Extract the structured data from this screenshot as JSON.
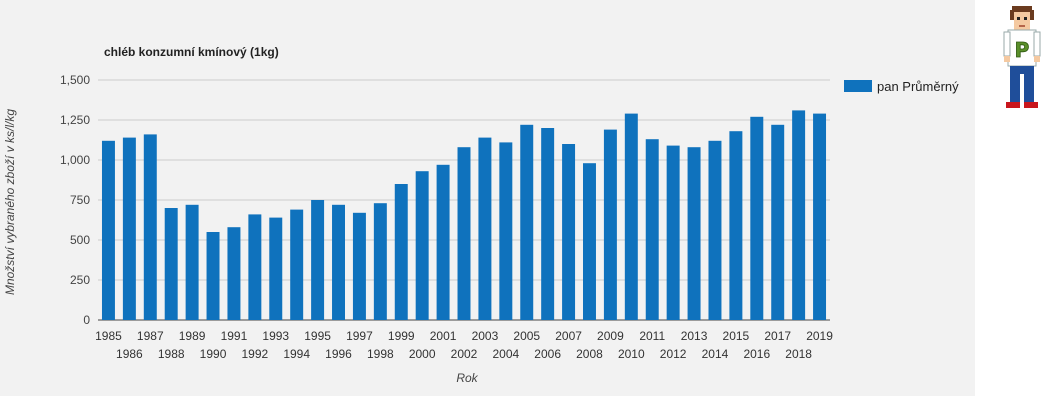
{
  "chart_data": {
    "type": "bar",
    "title": "chléb konzumní kmínový (1kg)",
    "xlabel": "Rok",
    "ylabel": "Množství vybraného zboží v ks/l/kg",
    "ylim": [
      0,
      1.5
    ],
    "yticks": [
      "0",
      "250",
      "500",
      "750",
      "1,000",
      "1,250",
      "1,500"
    ],
    "grid": true,
    "legend_position": "right",
    "series": [
      {
        "name": "pan Průměrný",
        "color": "#0f72bd",
        "values": [
          1.12,
          1.14,
          1.16,
          0.7,
          0.72,
          0.55,
          0.58,
          0.66,
          0.64,
          0.69,
          0.75,
          0.72,
          0.67,
          0.73,
          0.85,
          0.93,
          0.97,
          1.08,
          1.14,
          1.11,
          1.22,
          1.2,
          1.1,
          0.98,
          1.19,
          1.29,
          1.13,
          1.09,
          1.08,
          1.12,
          1.18,
          1.27,
          1.22,
          1.31,
          1.29
        ]
      }
    ],
    "categories": [
      "1985",
      "1986",
      "1987",
      "1988",
      "1989",
      "1990",
      "1991",
      "1992",
      "1993",
      "1994",
      "1995",
      "1996",
      "1997",
      "1998",
      "1999",
      "2000",
      "2001",
      "2002",
      "2003",
      "2004",
      "2005",
      "2006",
      "2007",
      "2008",
      "2009",
      "2010",
      "2011",
      "2012",
      "2013",
      "2014",
      "2015",
      "2016",
      "2017",
      "2018",
      "2019"
    ]
  },
  "avatar": {
    "icon": "person-icon",
    "letter": "P"
  }
}
